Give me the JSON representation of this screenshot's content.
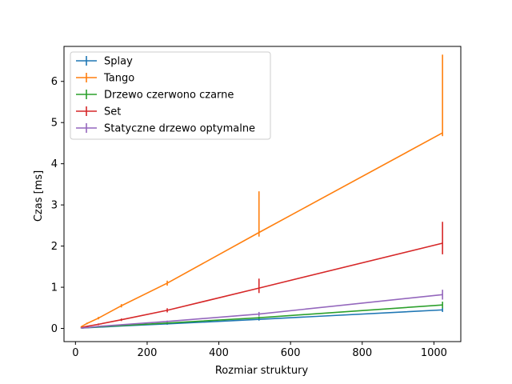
{
  "chart_data": {
    "type": "line",
    "title": "",
    "xlabel": "Rozmiar struktury",
    "ylabel": "Czas [ms]",
    "xlim": [
      -32,
      1075
    ],
    "ylim": [
      -0.32,
      6.85
    ],
    "xticks": [
      0,
      200,
      400,
      600,
      800,
      1000
    ],
    "yticks": [
      0,
      1,
      2,
      3,
      4,
      5,
      6
    ],
    "grid": false,
    "legend_position": "top-left",
    "series": [
      {
        "name": "Splay",
        "color": "#1f77b4",
        "x": [
          16,
          32,
          64,
          128,
          256,
          512,
          1024
        ],
        "y": [
          0.01,
          0.015,
          0.03,
          0.06,
          0.11,
          0.22,
          0.45
        ],
        "err": [
          0.005,
          0.005,
          0.01,
          0.01,
          0.02,
          0.03,
          0.05
        ]
      },
      {
        "name": "Tango",
        "color": "#ff7f0e",
        "x": [
          16,
          32,
          64,
          128,
          256,
          512,
          1024
        ],
        "y": [
          0.04,
          0.12,
          0.25,
          0.55,
          1.1,
          2.33,
          4.75
        ],
        "err": [
          0.01,
          0.02,
          0.03,
          0.04,
          0.06,
          [
            0.1,
            1.0
          ],
          [
            0.08,
            1.9
          ]
        ]
      },
      {
        "name": "Drzewo czerwono czarne",
        "color": "#2ca02c",
        "x": [
          16,
          32,
          64,
          128,
          256,
          512,
          1024
        ],
        "y": [
          0.01,
          0.02,
          0.04,
          0.07,
          0.13,
          0.26,
          0.57
        ],
        "err": [
          0.005,
          0.005,
          0.01,
          0.01,
          0.02,
          0.03,
          0.08
        ]
      },
      {
        "name": "Set",
        "color": "#d62728",
        "x": [
          16,
          32,
          64,
          128,
          256,
          512,
          1024
        ],
        "y": [
          0.02,
          0.05,
          0.1,
          0.21,
          0.44,
          0.98,
          2.07
        ],
        "err": [
          0.005,
          0.01,
          0.02,
          0.03,
          0.05,
          [
            0.12,
            0.23
          ],
          [
            0.27,
            0.52
          ]
        ]
      },
      {
        "name": "Statyczne drzewo optymalne",
        "color": "#9467bd",
        "x": [
          16,
          32,
          64,
          128,
          256,
          512,
          1024
        ],
        "y": [
          0.01,
          0.02,
          0.05,
          0.09,
          0.17,
          0.35,
          0.82
        ],
        "err": [
          0.005,
          0.005,
          0.01,
          0.01,
          0.02,
          0.05,
          0.12
        ]
      }
    ]
  }
}
